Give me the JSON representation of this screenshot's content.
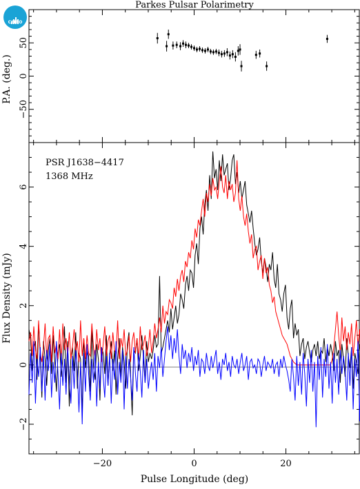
{
  "title": "Parkes Pulsar Polarimetry",
  "logo_text": "CSIRO",
  "colors": {
    "total": "#000000",
    "linear": "#ff0000",
    "circular": "#0000ff",
    "pa_points": "#000000"
  },
  "chart_data": [
    {
      "type": "scatter",
      "ylabel": "P.A. (deg.)",
      "xlim": [
        -36,
        36
      ],
      "ylim": [
        -100,
        100
      ],
      "yticks": [
        "50",
        "0",
        "−50"
      ],
      "yticks_values": [
        50,
        0,
        -50
      ],
      "points": [
        {
          "x": -8.0,
          "y": 57,
          "err": 8
        },
        {
          "x": -6.0,
          "y": 45,
          "err": 8
        },
        {
          "x": -5.6,
          "y": 63,
          "err": 7
        },
        {
          "x": -4.6,
          "y": 46,
          "err": 6
        },
        {
          "x": -3.8,
          "y": 47,
          "err": 5
        },
        {
          "x": -3.0,
          "y": 45,
          "err": 6
        },
        {
          "x": -2.4,
          "y": 49,
          "err": 5
        },
        {
          "x": -1.8,
          "y": 47,
          "err": 5
        },
        {
          "x": -1.2,
          "y": 46,
          "err": 4
        },
        {
          "x": -0.6,
          "y": 44,
          "err": 4
        },
        {
          "x": 0.0,
          "y": 42,
          "err": 4
        },
        {
          "x": 0.6,
          "y": 40,
          "err": 4
        },
        {
          "x": 1.2,
          "y": 41,
          "err": 4
        },
        {
          "x": 1.8,
          "y": 39,
          "err": 4
        },
        {
          "x": 2.4,
          "y": 38,
          "err": 4
        },
        {
          "x": 3.0,
          "y": 40,
          "err": 4
        },
        {
          "x": 3.6,
          "y": 37,
          "err": 4
        },
        {
          "x": 4.2,
          "y": 36,
          "err": 4
        },
        {
          "x": 4.8,
          "y": 37,
          "err": 4
        },
        {
          "x": 5.4,
          "y": 35,
          "err": 5
        },
        {
          "x": 6.0,
          "y": 33,
          "err": 5
        },
        {
          "x": 6.6,
          "y": 34,
          "err": 5
        },
        {
          "x": 7.2,
          "y": 36,
          "err": 6
        },
        {
          "x": 7.8,
          "y": 31,
          "err": 6
        },
        {
          "x": 8.4,
          "y": 33,
          "err": 6
        },
        {
          "x": 9.0,
          "y": 29,
          "err": 7
        },
        {
          "x": 9.6,
          "y": 38,
          "err": 7
        },
        {
          "x": 10.0,
          "y": 40,
          "err": 8
        },
        {
          "x": 10.3,
          "y": 15,
          "err": 8
        },
        {
          "x": 13.5,
          "y": 32,
          "err": 6
        },
        {
          "x": 14.3,
          "y": 34,
          "err": 6
        },
        {
          "x": 15.8,
          "y": 15,
          "err": 7
        },
        {
          "x": 29.0,
          "y": 56,
          "err": 6
        }
      ]
    },
    {
      "type": "line",
      "xlabel": "Pulse Longitude (deg)",
      "ylabel": "Flux Density (mJy)",
      "xlim": [
        -36,
        36
      ],
      "ylim": [
        -3,
        7.5
      ],
      "xticks": [
        "−20",
        "0",
        "20"
      ],
      "xticks_values": [
        -20,
        0,
        20
      ],
      "yticks": [
        "−2",
        "0",
        "2",
        "4",
        "6"
      ],
      "yticks_values": [
        -2,
        0,
        2,
        4,
        6
      ],
      "annotations": [
        "PSR J1638−4417",
        "1368 MHz"
      ],
      "profile": {
        "x_start": -36,
        "x_step": 0.3515625,
        "series": [
          {
            "key": "total",
            "values": [
              1.2,
              0.9,
              -0.2,
              0.6,
              0.8,
              -0.5,
              1.4,
              0.3,
              -1.1,
              0.8,
              0.2,
              -0.7,
              0.5,
              0.9,
              -0.3,
              1.0,
              0.1,
              -0.9,
              0.4,
              0.7,
              -0.4,
              0.2,
              1.3,
              -0.6,
              0.8,
              -1.4,
              0.3,
              0.6,
              -0.2,
              1.1,
              -0.8,
              0.4,
              0.2,
              -1.6,
              0.9,
              -0.1,
              0.5,
              0.3,
              -0.9,
              1.2,
              0.0,
              -0.5,
              0.7,
              0.2,
              -1.2,
              0.6,
              0.4,
              -0.3,
              1.0,
              -0.7,
              0.3,
              0.8,
              -0.2,
              0.5,
              -1.0,
              0.2,
              0.9,
              -0.4,
              0.6,
              0.1,
              -0.8,
              0.7,
              1.1,
              -0.3,
              -1.7,
              0.5,
              0.4,
              0.9,
              -0.2,
              0.3,
              1.0,
              0.2,
              -0.6,
              0.8,
              0.1,
              0.4,
              0.2,
              0.5,
              1.0,
              0.6,
              0.7,
              3.0,
              0.4,
              0.6,
              0.9,
              1.2,
              1.5,
              1.1,
              1.9,
              1.2,
              1.6,
              2.0,
              1.4,
              1.7,
              2.4,
              2.2,
              1.9,
              2.7,
              3.0,
              2.5,
              3.2,
              3.1,
              2.6,
              3.7,
              4.1,
              3.4,
              4.6,
              5.0,
              4.4,
              5.4,
              5.9,
              5.2,
              6.4,
              5.6,
              7.2,
              6.3,
              6.6,
              5.9,
              6.9,
              6.2,
              7.1,
              6.4,
              6.6,
              6.8,
              5.9,
              6.3,
              6.9,
              7.1,
              6.1,
              6.5,
              5.8,
              6.2,
              5.6,
              5.9,
              6.2,
              5.4,
              5.1,
              4.8,
              5.2,
              4.6,
              4.1,
              3.7,
              3.9,
              4.3,
              3.5,
              3.1,
              3.6,
              3.3,
              2.8,
              3.4,
              3.2,
              3.8,
              2.9,
              2.6,
              3.4,
              2.4,
              2.2,
              1.8,
              2.4,
              2.7,
              1.6,
              1.2,
              1.9,
              2.2,
              0.9,
              1.4,
              1.0,
              1.2,
              0.3,
              0.7,
              0.9,
              0.2,
              0.6,
              0.8,
              0.4,
              0.1,
              0.5,
              0.7,
              0.3,
              0.8,
              0.2,
              0.5,
              0.4,
              0.9,
              0.1,
              0.6,
              0.3,
              0.7,
              0.4,
              -0.2,
              0.8,
              0.3,
              0.5,
              -0.6,
              0.7,
              0.2,
              -0.4,
              0.9,
              0.3,
              -0.1,
              0.6,
              -0.8,
              0.4,
              0.1,
              -0.3,
              0.7,
              0.2,
              -0.5,
              0.5,
              0.8,
              -0.2,
              0.3,
              -0.9,
              0.6,
              0.1,
              -0.4,
              0.8
            ]
          },
          {
            "key": "linear",
            "values": [
              0.8,
              1.1,
              0.3,
              1.3,
              0.5,
              0.2,
              1.5,
              0.4,
              0.1,
              0.6,
              1.4,
              0.2,
              0.9,
              1.0,
              0.1,
              1.3,
              0.4,
              0.7,
              0.2,
              1.2,
              0.1,
              1.4,
              0.5,
              0.9,
              0.3,
              1.1,
              0.2,
              0.6,
              1.2,
              0.4,
              0.8,
              0.1,
              1.5,
              0.3,
              0.9,
              0.2,
              1.0,
              0.4,
              0.3,
              1.4,
              0.6,
              0.2,
              1.2,
              0.5,
              0.9,
              0.1,
              0.7,
              1.3,
              0.3,
              0.8,
              1.0,
              0.2,
              1.1,
              0.5,
              0.4,
              1.5,
              0.2,
              0.9,
              0.6,
              1.2,
              0.3,
              0.5,
              1.0,
              0.1,
              0.8,
              1.1,
              0.4,
              0.9,
              0.2,
              1.3,
              0.5,
              0.7,
              1.0,
              0.3,
              0.6,
              1.2,
              0.4,
              0.8,
              1.4,
              0.9,
              1.2,
              1.6,
              1.1,
              2.0,
              1.4,
              1.8,
              1.7,
              2.2,
              2.1,
              1.9,
              2.6,
              2.3,
              2.9,
              2.5,
              3.0,
              3.2,
              2.8,
              3.5,
              3.3,
              3.8,
              3.6,
              4.2,
              3.9,
              4.6,
              4.3,
              4.9,
              4.7,
              5.2,
              5.6,
              5.0,
              5.8,
              5.5,
              6.1,
              5.7,
              6.3,
              5.9,
              6.0,
              5.6,
              6.2,
              6.7,
              6.0,
              5.8,
              6.4,
              5.6,
              6.2,
              5.9,
              6.1,
              5.5,
              5.8,
              6.9,
              5.6,
              5.2,
              5.7,
              5.0,
              4.7,
              5.1,
              4.5,
              4.1,
              4.4,
              3.6,
              3.9,
              4.0,
              3.2,
              3.5,
              3.7,
              2.9,
              3.6,
              3.1,
              3.3,
              2.7,
              2.5,
              2.1,
              2.3,
              1.8,
              1.6,
              1.4,
              1.2,
              1.0,
              0.9,
              0.8,
              0.7,
              0.5,
              0.3,
              0.2,
              0.1,
              0.05,
              0.0,
              0.0,
              0.0,
              0.0,
              0.0,
              0.0,
              0.0,
              0.0,
              0.0,
              0.0,
              0.0,
              0.0,
              0.0,
              0.0,
              0.0,
              0.0,
              0.0,
              0.0,
              0.0,
              0.0,
              0.0,
              0.0,
              0.2,
              0.6,
              1.2,
              1.8,
              1.0,
              0.4,
              1.6,
              0.8,
              1.3,
              0.5,
              1.1,
              0.7,
              1.4,
              0.3,
              0.9,
              1.5,
              0.6,
              1.2,
              0.4,
              1.0,
              0.8,
              1.3,
              0.5,
              0.9,
              1.1
            ]
          },
          {
            "key": "circular",
            "values": [
              -1.0,
              0.4,
              -0.6,
              0.8,
              -1.3,
              0.2,
              -0.4,
              0.6,
              -0.9,
              0.3,
              -1.2,
              0.5,
              -0.2,
              0.7,
              -1.1,
              0.1,
              -0.6,
              0.8,
              -0.3,
              -1.5,
              0.4,
              -0.7,
              0.2,
              -1.0,
              0.6,
              -0.4,
              -1.3,
              0.3,
              -0.8,
              0.5,
              -0.2,
              -1.6,
              0.1,
              -2.0,
              0.4,
              -0.9,
              0.7,
              -0.3,
              -1.2,
              0.2,
              -0.6,
              0.5,
              -1.4,
              0.1,
              -0.8,
              0.6,
              -0.4,
              -1.1,
              0.3,
              -0.7,
              0.4,
              -1.3,
              0.2,
              -0.5,
              0.8,
              -1.0,
              0.1,
              -0.6,
              0.5,
              -1.5,
              0.3,
              -0.8,
              0.2,
              -0.4,
              -1.2,
              0.6,
              -0.3,
              -0.9,
              0.4,
              -0.2,
              -1.1,
              0.5,
              -0.6,
              0.2,
              -0.8,
              -0.3,
              0.1,
              -0.5,
              0.4,
              -0.9,
              0.3,
              -0.1,
              0.6,
              -0.4,
              0.2,
              0.8,
              1.3,
              0.5,
              1.0,
              0.2,
              0.9,
              0.4,
              1.2,
              0.3,
              -0.3,
              0.7,
              0.2,
              0.5,
              -0.1,
              0.4,
              0.1,
              0.6,
              -0.2,
              0.3,
              0.0,
              0.5,
              -0.4,
              0.2,
              0.1,
              -0.3,
              0.4,
              0.0,
              -0.2,
              0.3,
              -0.1,
              0.2,
              0.5,
              -0.3,
              0.1,
              -0.5,
              0.2,
              0.0,
              0.4,
              -0.2,
              0.1,
              -0.4,
              0.3,
              0.0,
              -0.1,
              0.2,
              -0.3,
              0.1,
              0.4,
              -0.2,
              0.0,
              0.3,
              -0.5,
              0.1,
              0.2,
              -0.1,
              0.0,
              -0.3,
              0.2,
              0.1,
              -0.4,
              0.0,
              0.3,
              -0.2,
              0.1,
              0.0,
              -0.1,
              0.2,
              -0.3,
              0.0,
              0.1,
              -0.4,
              0.2,
              -0.1,
              0.3,
              0.0,
              -0.2,
              -0.5,
              -0.9,
              0.2,
              -0.4,
              -1.2,
              0.3,
              -0.7,
              0.1,
              -1.0,
              0.4,
              -0.3,
              -1.4,
              0.2,
              -0.6,
              0.5,
              -0.9,
              0.1,
              -2.1,
              0.3,
              -0.5,
              0.6,
              -1.1,
              0.2,
              -0.4,
              0.7,
              -0.8,
              0.1,
              -1.3,
              0.4,
              -0.6,
              0.2,
              -1.0,
              0.5,
              -0.3,
              0.3,
              -0.2,
              -1.2,
              0.4,
              -0.7,
              0.6,
              -1.5,
              0.2,
              -0.4,
              0.8,
              -1.9,
              0.3,
              -0.8,
              0.5,
              -1.1,
              0.1,
              -0.5,
              0.9,
              -1.4,
              0.3,
              -0.6,
              0.4,
              -1.0,
              0.2,
              -0.3,
              0.7,
              -1.7,
              0.2,
              -0.5,
              0.5,
              -1.0,
              0.4,
              -0.9
            ]
          }
        ]
      }
    }
  ]
}
